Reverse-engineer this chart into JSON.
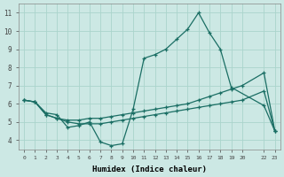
{
  "xlabel": "Humidex (Indice chaleur)",
  "background_color": "#cce8e4",
  "grid_color": "#aad4cc",
  "line_color": "#1a6e64",
  "xlim": [
    -0.5,
    23.5
  ],
  "ylim": [
    3.5,
    11.5
  ],
  "xtick_positions": [
    0,
    1,
    2,
    3,
    4,
    5,
    6,
    7,
    8,
    9,
    10,
    11,
    12,
    13,
    14,
    15,
    16,
    17,
    18,
    19,
    20,
    22,
    23
  ],
  "xtick_labels": [
    "0",
    "1",
    "2",
    "3",
    "4",
    "5",
    "6",
    "7",
    "8",
    "9",
    "10",
    "11",
    "12",
    "13",
    "14",
    "15",
    "16",
    "17",
    "18",
    "19",
    "20",
    "22",
    "23"
  ],
  "ytick_positions": [
    4,
    5,
    6,
    7,
    8,
    9,
    10,
    11
  ],
  "ytick_labels": [
    "4",
    "5",
    "6",
    "7",
    "8",
    "9",
    "10",
    "11"
  ],
  "line1_x": [
    0,
    1,
    2,
    3,
    4,
    5,
    6,
    7,
    8,
    9,
    10,
    11,
    12,
    13,
    14,
    15,
    16,
    17,
    18,
    19,
    22,
    23
  ],
  "line1_y": [
    6.2,
    6.1,
    5.5,
    5.4,
    4.7,
    4.8,
    5.0,
    3.9,
    3.7,
    3.8,
    5.7,
    8.5,
    8.7,
    9.0,
    9.55,
    10.1,
    11.0,
    9.9,
    9.0,
    6.9,
    5.9,
    4.5
  ],
  "line2_x": [
    0,
    1,
    2,
    3,
    4,
    5,
    6,
    7,
    8,
    9,
    10,
    11,
    12,
    13,
    14,
    15,
    16,
    17,
    18,
    19,
    20,
    22,
    23
  ],
  "line2_y": [
    6.2,
    6.1,
    5.4,
    5.2,
    5.1,
    5.1,
    5.2,
    5.2,
    5.3,
    5.4,
    5.5,
    5.6,
    5.7,
    5.8,
    5.9,
    6.0,
    6.2,
    6.4,
    6.6,
    6.8,
    7.0,
    7.7,
    4.5
  ],
  "line3_x": [
    0,
    1,
    2,
    3,
    4,
    5,
    6,
    7,
    8,
    9,
    10,
    11,
    12,
    13,
    14,
    15,
    16,
    17,
    18,
    19,
    20,
    22,
    23
  ],
  "line3_y": [
    6.2,
    6.1,
    5.4,
    5.2,
    5.0,
    4.9,
    4.9,
    4.9,
    5.0,
    5.1,
    5.2,
    5.3,
    5.4,
    5.5,
    5.6,
    5.7,
    5.8,
    5.9,
    6.0,
    6.1,
    6.2,
    6.7,
    4.5
  ]
}
